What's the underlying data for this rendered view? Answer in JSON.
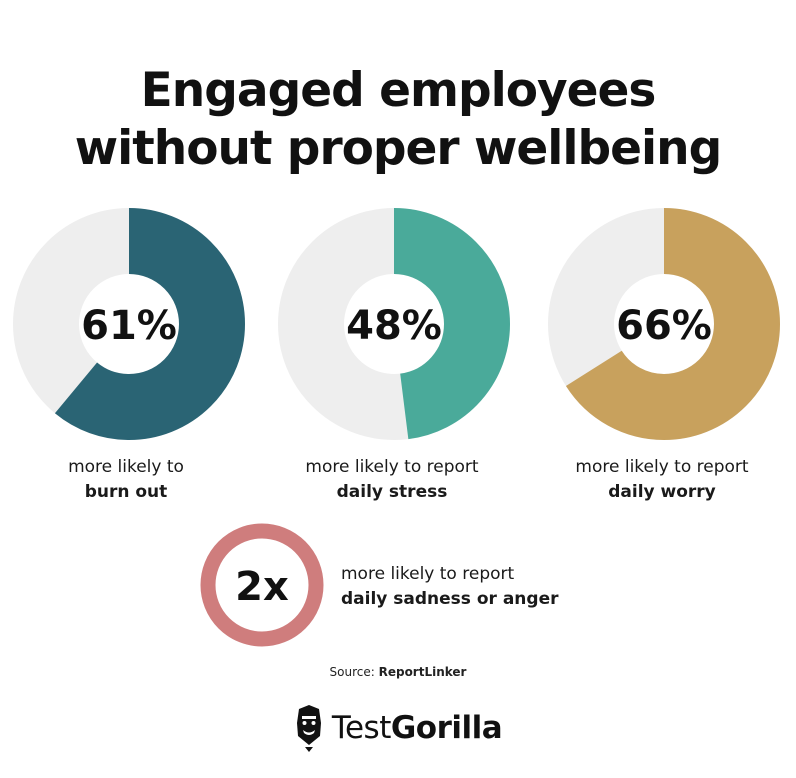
{
  "title": {
    "line1": "Engaged employees",
    "line2": "without proper wellbeing"
  },
  "chart_data": {
    "type": "pie",
    "subtype": "donut",
    "title": "Engaged employees without proper wellbeing",
    "series": [
      {
        "value": 61,
        "label": "61%",
        "caption_line1": "more likely to",
        "caption_line2": "burn out",
        "color": "#2a6474"
      },
      {
        "value": 48,
        "label": "48%",
        "caption_line1": "more likely to report",
        "caption_line2": "daily stress",
        "color": "#4aaa9a"
      },
      {
        "value": 66,
        "label": "66%",
        "caption_line1": "more likely to report",
        "caption_line2": "daily worry",
        "color": "#c8a15d"
      }
    ],
    "track_color": "#eeeeee",
    "max": 100
  },
  "ratio": {
    "label": "2x",
    "caption_line1": "more likely to report",
    "caption_line2": "daily sadness or anger",
    "ring_color": "#cf7d7d"
  },
  "source": {
    "prefix": "Source: ",
    "name": "ReportLinker"
  },
  "logo": {
    "text_regular": "Test",
    "text_bold": "Gorilla",
    "icon": "gorilla-head-icon"
  }
}
